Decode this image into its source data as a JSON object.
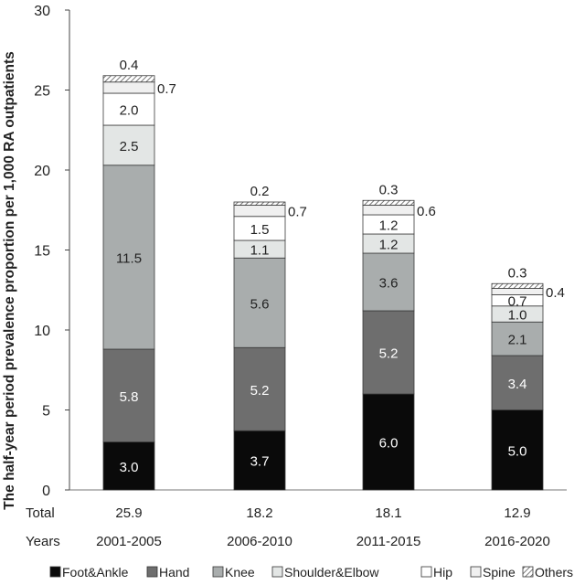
{
  "chart_data": {
    "type": "bar",
    "stacked": true,
    "ylabel": "The half-year period prevalence proportion per 1,000 RA outpatients",
    "ylim": [
      0,
      30
    ],
    "yticks": [
      0,
      5,
      10,
      15,
      20,
      25,
      30
    ],
    "grid": false,
    "legend_position": "bottom",
    "categories": [
      "2001-2005",
      "2006-2010",
      "2011-2015",
      "2016-2020"
    ],
    "row_labels": {
      "total": "Total",
      "years": "Years"
    },
    "totals": [
      "25.9",
      "18.2",
      "18.1",
      "12.9"
    ],
    "series": [
      {
        "name": "Foot&Ankle",
        "color": "#0a0a0a",
        "pattern": "solid",
        "labelColor": "#ffffff",
        "values": [
          3.0,
          3.7,
          6.0,
          5.0
        ],
        "labels": [
          "3.0",
          "3.7",
          "6.0",
          "5.0"
        ]
      },
      {
        "name": "Hand",
        "color": "#6e6e6e",
        "pattern": "solid",
        "labelColor": "#ffffff",
        "values": [
          5.8,
          5.2,
          5.2,
          3.4
        ],
        "labels": [
          "5.8",
          "5.2",
          "5.2",
          "3.4"
        ]
      },
      {
        "name": "Knee",
        "color": "#a9adad",
        "pattern": "solid",
        "labelColor": "#222222",
        "values": [
          11.5,
          5.6,
          3.6,
          2.1
        ],
        "labels": [
          "11.5",
          "5.6",
          "3.6",
          "2.1"
        ]
      },
      {
        "name": "Shoulder&Elbow",
        "color": "#e3e6e5",
        "pattern": "solid",
        "labelColor": "#222222",
        "values": [
          2.5,
          1.1,
          1.2,
          1.0
        ],
        "labels": [
          "2.5",
          "1.1",
          "1.2",
          "1.0"
        ]
      },
      {
        "name": "Hip",
        "color": "#ffffff",
        "pattern": "solid",
        "labelColor": "#222222",
        "values": [
          2.0,
          1.5,
          1.2,
          0.7
        ],
        "labels": [
          "2.0",
          "1.5",
          "1.2",
          "0.7"
        ]
      },
      {
        "name": "Spine",
        "color": "#f0f0f0",
        "pattern": "solid",
        "labelColor": "#222222",
        "values": [
          0.7,
          0.7,
          0.6,
          0.4
        ],
        "labels": [
          "0.7",
          "0.7",
          "0.6",
          "0.4"
        ]
      },
      {
        "name": "Others",
        "color": "#ffffff",
        "pattern": "hatch",
        "labelColor": "#222222",
        "values": [
          0.4,
          0.2,
          0.3,
          0.3
        ],
        "labels": [
          "0.4",
          "0.2",
          "0.3",
          "0.3"
        ]
      }
    ]
  }
}
